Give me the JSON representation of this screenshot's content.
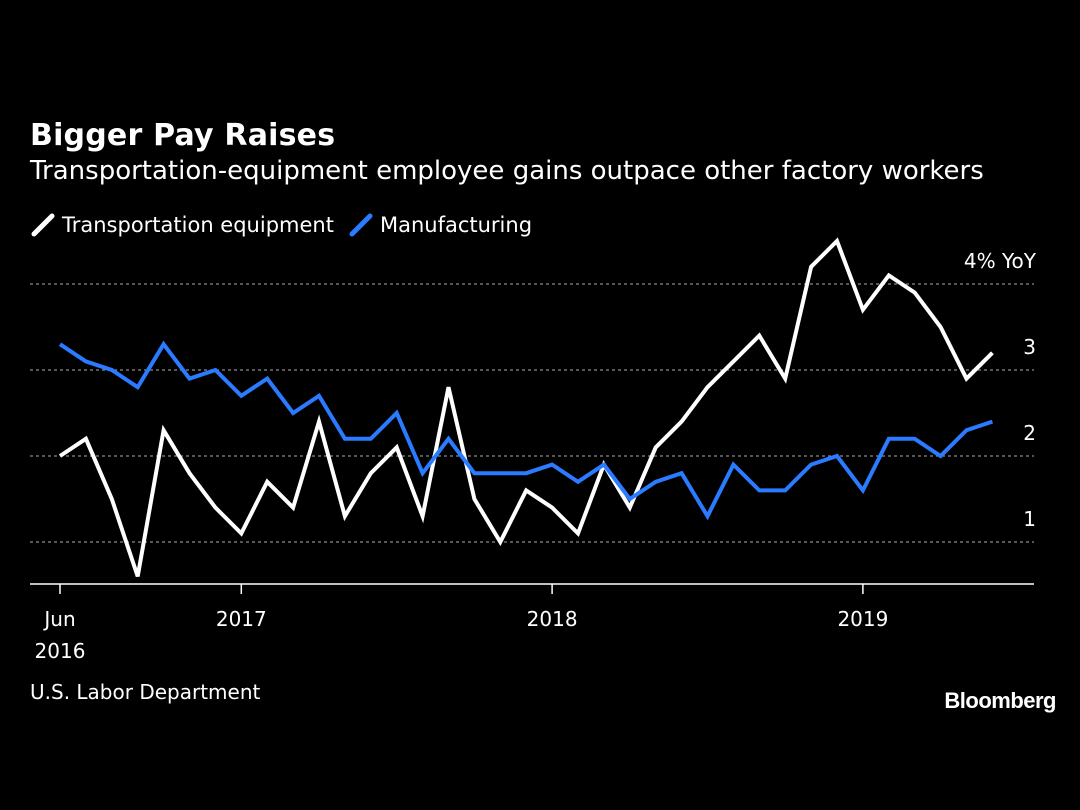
{
  "chart_data": {
    "type": "line",
    "title": "Bigger Pay Raises",
    "subtitle": "Transportation-equipment employee gains outpace other factory workers",
    "ylabel": "4% YoY",
    "ylim": [
      0.5,
      4.3
    ],
    "y_ticks": [
      {
        "value": 4,
        "label": "4% YoY"
      },
      {
        "value": 3,
        "label": "3"
      },
      {
        "value": 2,
        "label": "2"
      },
      {
        "value": 1,
        "label": "1"
      }
    ],
    "x_ticks": [
      {
        "date": "2016-06",
        "label": [
          "Jun",
          "2016"
        ]
      },
      {
        "date": "2017-01",
        "label": [
          "2017"
        ]
      },
      {
        "date": "2018-01",
        "label": [
          "2018"
        ]
      },
      {
        "date": "2019-01",
        "label": [
          "2019"
        ]
      }
    ],
    "x": [
      "2016-06",
      "2016-07",
      "2016-08",
      "2016-09",
      "2016-10",
      "2016-11",
      "2016-12",
      "2017-01",
      "2017-02",
      "2017-03",
      "2017-04",
      "2017-05",
      "2017-06",
      "2017-07",
      "2017-08",
      "2017-09",
      "2017-10",
      "2017-11",
      "2017-12",
      "2018-01",
      "2018-02",
      "2018-03",
      "2018-04",
      "2018-05",
      "2018-06",
      "2018-07",
      "2018-08",
      "2018-09",
      "2018-10",
      "2018-11",
      "2018-12",
      "2019-01",
      "2019-02",
      "2019-03",
      "2019-04",
      "2019-05",
      "2019-06",
      "2019-07"
    ],
    "series": [
      {
        "name": "Transportation equipment",
        "color": "#ffffff",
        "values": [
          2.0,
          2.2,
          1.5,
          0.6,
          2.3,
          1.8,
          1.4,
          1.1,
          1.7,
          1.4,
          2.4,
          1.3,
          1.8,
          2.1,
          1.3,
          2.8,
          1.5,
          1.0,
          1.6,
          1.4,
          1.1,
          1.9,
          1.4,
          2.1,
          2.4,
          2.8,
          3.1,
          3.4,
          2.9,
          4.2,
          4.5,
          3.7,
          4.1,
          3.9,
          3.5,
          2.9,
          3.2,
          null
        ]
      },
      {
        "name": "Manufacturing",
        "color": "#2a7bff",
        "values": [
          3.3,
          3.1,
          3.0,
          2.8,
          3.3,
          2.9,
          3.0,
          2.7,
          2.9,
          2.5,
          2.7,
          2.2,
          2.2,
          2.5,
          1.8,
          2.2,
          1.8,
          1.8,
          1.8,
          1.9,
          1.7,
          1.9,
          1.5,
          1.7,
          1.8,
          1.3,
          1.9,
          1.6,
          1.6,
          1.9,
          2.0,
          1.6,
          2.2,
          2.2,
          2.0,
          2.3,
          2.4,
          null
        ]
      }
    ],
    "grid": true,
    "legend_position": "top-left"
  },
  "source": "U.S. Labor Department",
  "brand": "Bloomberg"
}
